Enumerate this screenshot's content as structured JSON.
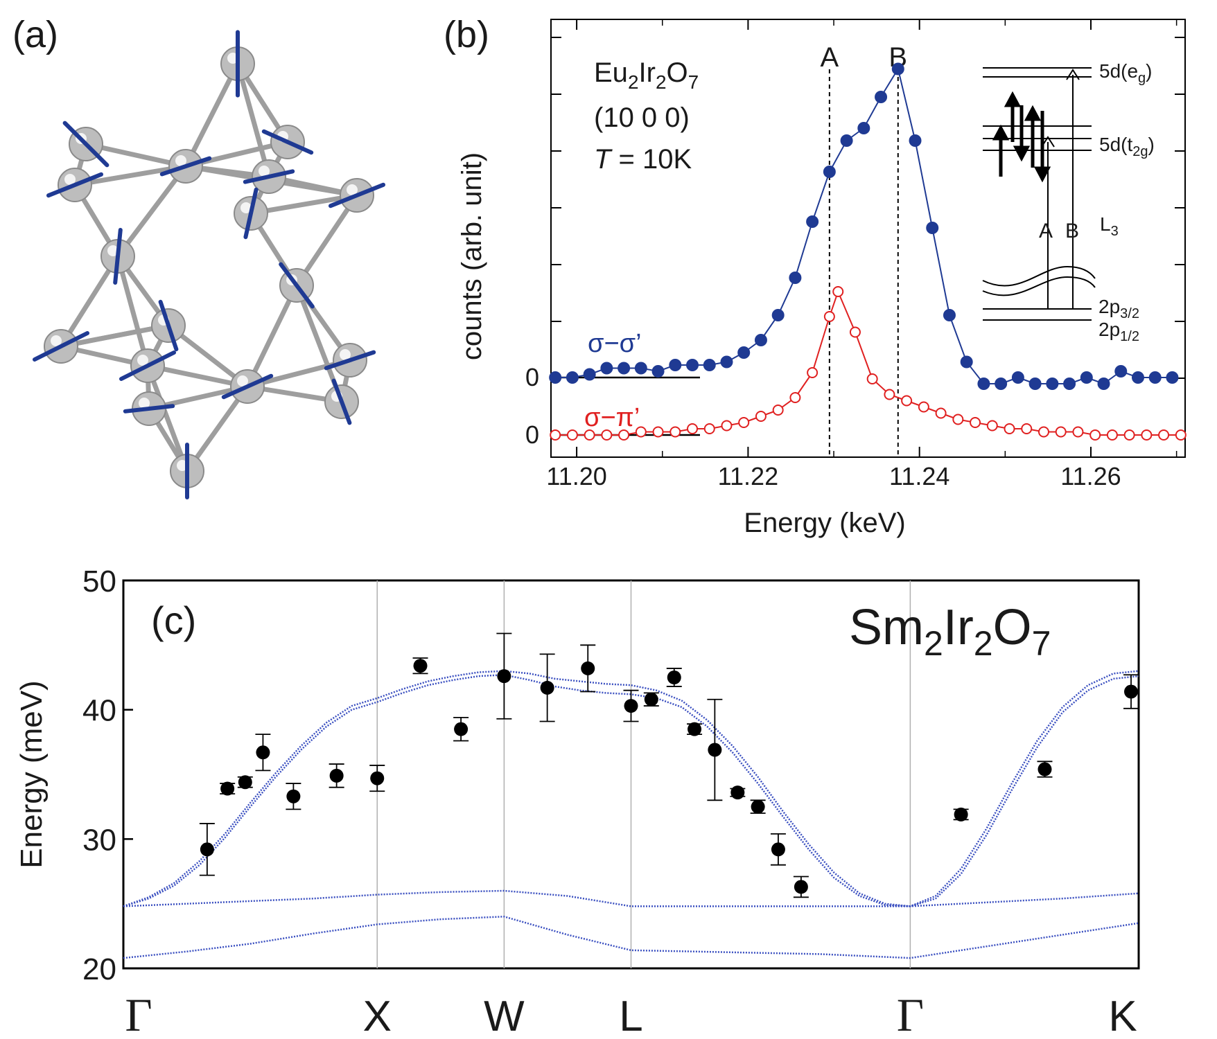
{
  "panels": {
    "a": {
      "label": "(a)"
    },
    "b": {
      "label": "(b)"
    },
    "c": {
      "label": "(c)"
    }
  },
  "colors": {
    "blue": "#1f3a93",
    "red": "#e02020",
    "fit_c": "#3a4fc0",
    "atom": "#bdbdbd",
    "bond": "#9e9e9e",
    "axis": "#000000",
    "grid": "#b0b0b0"
  },
  "structure": {
    "labels": []
  },
  "chart_data": [
    {
      "id": "b",
      "type": "scatter",
      "xlabel": "Energy (keV)",
      "ylabel": "counts (arb. unit)",
      "xlim": [
        11.197,
        11.271
      ],
      "x_ticks": [
        11.2,
        11.22,
        11.24,
        11.26
      ],
      "x_tick_labels": [
        "11.20",
        "11.22",
        "11.24",
        "11.26"
      ],
      "zero_labels": [
        "0",
        "0"
      ],
      "sample_text": {
        "formula_base": "Eu",
        "sub1": "2",
        "mid": "Ir",
        "sub2": "2",
        "end": "O",
        "sub3": "7",
        "q": "(10 0 0)",
        "T_italic": "T",
        "T_rest": " = 10K"
      },
      "markers": [
        {
          "label": "A",
          "x": 11.2295
        },
        {
          "label": "B",
          "x": 11.2375
        }
      ],
      "series": [
        {
          "name": "σ−σ’",
          "marker": "filled-circle",
          "offset": 0,
          "x": [
            11.1975,
            11.1995,
            11.2015,
            11.2035,
            11.2055,
            11.2075,
            11.2095,
            11.2115,
            11.2135,
            11.2155,
            11.2175,
            11.2195,
            11.2215,
            11.2235,
            11.2255,
            11.2275,
            11.2295,
            11.2315,
            11.2335,
            11.2355,
            11.2375,
            11.2395,
            11.2415,
            11.2435,
            11.2455,
            11.2475,
            11.2495,
            11.2515,
            11.2535,
            11.2555,
            11.2575,
            11.2595,
            11.2615,
            11.2635,
            11.2655,
            11.2675,
            11.2695
          ],
          "y": [
            0.0,
            0.0,
            0.01,
            0.03,
            0.03,
            0.03,
            0.02,
            0.04,
            0.04,
            0.04,
            0.05,
            0.08,
            0.12,
            0.2,
            0.32,
            0.5,
            0.66,
            0.76,
            0.8,
            0.9,
            0.99,
            0.76,
            0.48,
            0.2,
            0.05,
            -0.02,
            -0.02,
            0.0,
            -0.02,
            -0.02,
            -0.02,
            0.0,
            -0.02,
            0.02,
            0.0,
            0.0,
            0.0
          ]
        },
        {
          "name": "σ−π’",
          "marker": "open-circle",
          "offset": -0.21,
          "x": [
            11.1975,
            11.1995,
            11.2015,
            11.2035,
            11.2055,
            11.2075,
            11.2095,
            11.2115,
            11.2135,
            11.2155,
            11.2175,
            11.2195,
            11.2215,
            11.2235,
            11.2255,
            11.2275,
            11.2295,
            11.2305,
            11.2325,
            11.2345,
            11.2365,
            11.2385,
            11.2405,
            11.2425,
            11.2445,
            11.2465,
            11.2485,
            11.2505,
            11.2525,
            11.2545,
            11.2565,
            11.2585,
            11.2605,
            11.2625,
            11.2645,
            11.2665,
            11.2685,
            11.2705
          ],
          "y": [
            0.0,
            0.0,
            0.0,
            0.0,
            0.0,
            0.01,
            0.01,
            0.01,
            0.02,
            0.02,
            0.03,
            0.04,
            0.06,
            0.08,
            0.12,
            0.2,
            0.38,
            0.46,
            0.33,
            0.18,
            0.13,
            0.11,
            0.09,
            0.07,
            0.05,
            0.04,
            0.03,
            0.02,
            0.02,
            0.01,
            0.01,
            0.01,
            0.0,
            0.0,
            0.0,
            0.0,
            0.0,
            0.0
          ]
        }
      ],
      "inset": {
        "levels_upper": [
          "5d(e",
          "g",
          ")"
        ],
        "levels_t2g": [
          "5d(t",
          "2g",
          ")"
        ],
        "transitions": [
          "A",
          "B"
        ],
        "edge": "L",
        "edge_sub": "3",
        "core1": [
          "2p",
          "3/2"
        ],
        "core2": [
          "2p",
          "1/2"
        ]
      }
    },
    {
      "id": "c",
      "type": "scatter",
      "title_parts": [
        "Sm",
        "2",
        "Ir",
        "2",
        "O",
        "7"
      ],
      "ylabel": "Energy (meV)",
      "ylim": [
        20,
        50
      ],
      "y_ticks": [
        20,
        30,
        40,
        50
      ],
      "x_ticks": [
        0,
        1,
        1.5,
        2,
        3.1,
        4
      ],
      "x_tick_labels": [
        "Γ",
        "X",
        "W",
        "L",
        "Γ",
        "K"
      ],
      "xlim": [
        0,
        4
      ],
      "points": [
        {
          "x": 0.33,
          "y": 29.2,
          "err": 2.0
        },
        {
          "x": 0.41,
          "y": 33.9,
          "err": 0.4
        },
        {
          "x": 0.48,
          "y": 34.4,
          "err": 0.4
        },
        {
          "x": 0.55,
          "y": 36.7,
          "err": 1.4
        },
        {
          "x": 0.67,
          "y": 33.3,
          "err": 1.0
        },
        {
          "x": 0.84,
          "y": 34.9,
          "err": 0.9
        },
        {
          "x": 1.0,
          "y": 34.7,
          "err": 1.0
        },
        {
          "x": 1.17,
          "y": 43.4,
          "err": 0.6
        },
        {
          "x": 1.33,
          "y": 38.5,
          "err": 0.9
        },
        {
          "x": 1.5,
          "y": 42.6,
          "err": 3.3
        },
        {
          "x": 1.67,
          "y": 41.7,
          "err": 2.6
        },
        {
          "x": 1.83,
          "y": 43.2,
          "err": 1.8
        },
        {
          "x": 2.0,
          "y": 40.3,
          "err": 1.2
        },
        {
          "x": 2.08,
          "y": 40.8,
          "err": 0.5
        },
        {
          "x": 2.17,
          "y": 42.5,
          "err": 0.7
        },
        {
          "x": 2.25,
          "y": 38.5,
          "err": 0.4
        },
        {
          "x": 2.33,
          "y": 36.9,
          "err": 3.9
        },
        {
          "x": 2.42,
          "y": 33.6,
          "err": 0.3
        },
        {
          "x": 2.5,
          "y": 32.5,
          "err": 0.5
        },
        {
          "x": 2.58,
          "y": 29.2,
          "err": 1.2
        },
        {
          "x": 2.67,
          "y": 26.3,
          "err": 0.8
        },
        {
          "x": 3.3,
          "y": 31.9,
          "err": 0.4
        },
        {
          "x": 3.63,
          "y": 35.4,
          "err": 0.6
        },
        {
          "x": 3.97,
          "y": 41.4,
          "err": 1.3
        }
      ],
      "fit_curves": [
        {
          "name": "upper-1",
          "x": [
            0,
            0.1,
            0.2,
            0.3,
            0.4,
            0.5,
            0.6,
            0.7,
            0.8,
            0.9,
            1.0,
            1.1,
            1.2,
            1.3,
            1.4,
            1.5,
            1.6,
            1.7,
            1.8,
            1.9,
            2.0,
            2.1,
            2.2,
            2.3,
            2.4,
            2.5,
            2.6,
            2.7,
            2.8,
            2.9,
            3.0,
            3.1,
            3.2,
            3.3,
            3.4,
            3.5,
            3.6,
            3.7,
            3.8,
            3.9,
            4.0
          ],
          "y": [
            24.8,
            25.5,
            26.6,
            28.3,
            30.4,
            32.8,
            35.1,
            37.2,
            39.0,
            40.3,
            40.9,
            41.6,
            42.2,
            42.6,
            42.9,
            43.0,
            42.8,
            42.4,
            42.2,
            42.0,
            41.9,
            41.5,
            40.7,
            39.2,
            37.2,
            34.8,
            32.1,
            29.6,
            27.4,
            25.8,
            25.0,
            24.8,
            25.6,
            27.7,
            30.8,
            34.3,
            37.6,
            40.2,
            41.9,
            42.8,
            43.0
          ]
        },
        {
          "name": "upper-2",
          "x": [
            0,
            0.1,
            0.2,
            0.3,
            0.4,
            0.5,
            0.6,
            0.7,
            0.8,
            0.9,
            1.0,
            1.1,
            1.2,
            1.3,
            1.4,
            1.5,
            1.6,
            1.7,
            1.8,
            1.9,
            2.0,
            2.1,
            2.2,
            2.3,
            2.4,
            2.5,
            2.6,
            2.7,
            2.8,
            2.9,
            3.0,
            3.1,
            3.2,
            3.3,
            3.4,
            3.5,
            3.6,
            3.7,
            3.8,
            3.9,
            4.0
          ],
          "y": [
            24.8,
            25.4,
            26.4,
            28.0,
            30.1,
            32.5,
            34.8,
            36.9,
            38.7,
            40.0,
            40.6,
            41.3,
            41.9,
            42.3,
            42.6,
            42.7,
            42.3,
            41.8,
            41.5,
            41.3,
            41.2,
            40.9,
            40.2,
            38.7,
            36.7,
            34.3,
            31.7,
            29.2,
            27.0,
            25.6,
            24.9,
            24.8,
            25.4,
            27.3,
            30.3,
            33.8,
            37.1,
            39.8,
            41.5,
            42.4,
            42.6
          ]
        },
        {
          "name": "middle",
          "x": [
            0,
            0.25,
            0.5,
            0.75,
            1.0,
            1.25,
            1.5,
            1.75,
            2.0,
            2.25,
            2.5,
            2.75,
            3.1,
            3.4,
            3.7,
            4.0
          ],
          "y": [
            24.8,
            25.0,
            25.2,
            25.4,
            25.7,
            25.9,
            26.0,
            25.6,
            24.8,
            24.8,
            24.8,
            24.8,
            24.8,
            25.1,
            25.4,
            25.8
          ]
        },
        {
          "name": "lower",
          "x": [
            0,
            0.25,
            0.5,
            0.75,
            1.0,
            1.25,
            1.5,
            1.75,
            2.0,
            2.25,
            2.5,
            2.75,
            3.1,
            3.4,
            3.7,
            4.0
          ],
          "y": [
            20.8,
            21.3,
            21.9,
            22.7,
            23.4,
            23.8,
            24.0,
            22.6,
            21.4,
            21.3,
            21.2,
            21.1,
            20.8,
            21.7,
            22.6,
            23.5
          ]
        }
      ]
    }
  ]
}
